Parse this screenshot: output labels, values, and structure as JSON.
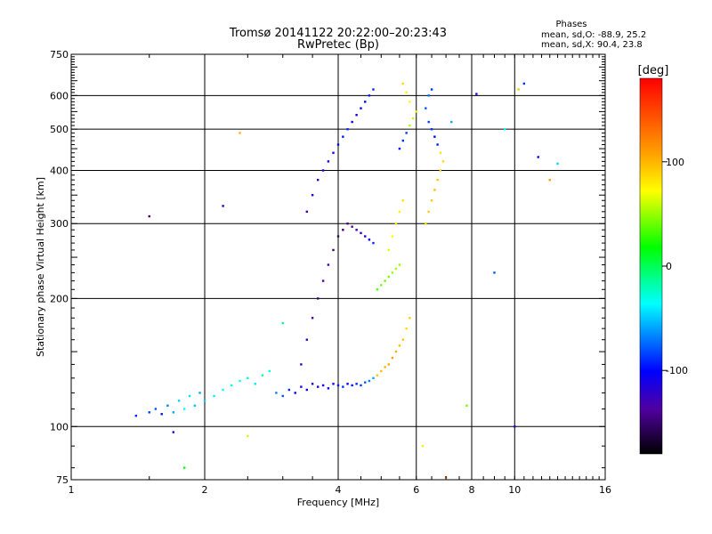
{
  "chart_data": {
    "type": "scatter",
    "title": "Tromsø 20141122 20:22:00–20:23:43",
    "subtitle": "RwPretec (Bp)",
    "xlabel": "Frequency [MHz]",
    "ylabel": "Stationary phase Virtual Height [km]",
    "x_scale": "log",
    "y_scale": "log",
    "xlim": [
      1,
      16
    ],
    "ylim": [
      75,
      750
    ],
    "x_ticks": [
      1,
      2,
      4,
      6,
      8,
      10,
      16
    ],
    "x_tick_labels": [
      "1",
      "2",
      "4",
      "6",
      "8",
      "10",
      "16"
    ],
    "x_gridlines": [
      2,
      4,
      6,
      8,
      10
    ],
    "y_ticks": [
      75,
      100,
      200,
      300,
      400,
      500,
      600,
      750
    ],
    "y_tick_labels": [
      "75",
      "100",
      "200",
      "300",
      "400",
      "500",
      "600",
      "750"
    ],
    "y_gridlines": [
      100,
      200,
      300,
      400,
      500,
      600
    ],
    "grid": true,
    "legend": {
      "title": "Phases",
      "lines": [
        "mean, sd,O:  -88.9, 25.2",
        "mean, sd,X:  90.4, 23.8"
      ],
      "placement": "top-right"
    },
    "colorbar": {
      "label": "[deg]",
      "range": [
        -180,
        180
      ],
      "ticks": [
        100,
        0,
        -100
      ],
      "tick_labels": [
        "100",
        "0",
        "-100"
      ],
      "colormap": "rainbow (black-purple-blue-cyan-green-yellow-red)"
    },
    "series": [
      {
        "points": [
          [
            1.4,
            106,
            -90
          ],
          [
            1.5,
            108,
            -85
          ],
          [
            1.55,
            110,
            -80
          ],
          [
            1.6,
            107,
            -95
          ],
          [
            1.65,
            112,
            -70
          ],
          [
            1.7,
            108,
            -60
          ],
          [
            1.75,
            115,
            -50
          ],
          [
            1.8,
            110,
            -40
          ],
          [
            1.85,
            118,
            -45
          ],
          [
            1.9,
            112,
            -55
          ],
          [
            1.95,
            120,
            -60
          ],
          [
            2.0,
            115,
            -50
          ],
          [
            2.1,
            118,
            -45
          ],
          [
            2.2,
            122,
            -40
          ],
          [
            2.3,
            125,
            -35
          ],
          [
            2.4,
            128,
            -40
          ],
          [
            2.5,
            130,
            -30
          ],
          [
            2.6,
            126,
            -45
          ],
          [
            2.7,
            132,
            -25
          ],
          [
            2.8,
            135,
            -35
          ],
          [
            2.9,
            120,
            -70
          ],
          [
            3.0,
            118,
            -80
          ],
          [
            3.1,
            122,
            -90
          ],
          [
            3.2,
            120,
            -100
          ],
          [
            3.3,
            124,
            -110
          ],
          [
            3.4,
            122,
            -105
          ],
          [
            3.5,
            126,
            -120
          ],
          [
            3.6,
            124,
            -115
          ],
          [
            3.7,
            125,
            -110
          ],
          [
            3.8,
            123,
            -100
          ],
          [
            3.9,
            126,
            -105
          ],
          [
            4.0,
            125,
            -95
          ],
          [
            4.1,
            124,
            -90
          ],
          [
            4.2,
            126,
            -100
          ],
          [
            4.3,
            125,
            -95
          ],
          [
            4.4,
            126,
            -90
          ],
          [
            4.5,
            125,
            -85
          ],
          [
            4.6,
            127,
            -80
          ],
          [
            4.7,
            128,
            -70
          ],
          [
            4.8,
            130,
            -60
          ],
          [
            4.9,
            132,
            120
          ],
          [
            5.0,
            135,
            125
          ],
          [
            5.1,
            138,
            130
          ],
          [
            5.2,
            140,
            135
          ],
          [
            5.3,
            145,
            140
          ],
          [
            5.4,
            150,
            130
          ],
          [
            5.5,
            155,
            125
          ],
          [
            5.6,
            160,
            120
          ],
          [
            5.7,
            170,
            110
          ],
          [
            5.8,
            180,
            115
          ],
          [
            3.3,
            140,
            -120
          ],
          [
            3.4,
            160,
            -130
          ],
          [
            3.5,
            180,
            -140
          ],
          [
            3.6,
            200,
            -150
          ],
          [
            3.7,
            220,
            -140
          ],
          [
            3.8,
            240,
            -130
          ],
          [
            3.9,
            260,
            -150
          ],
          [
            4.0,
            280,
            -155
          ],
          [
            4.1,
            290,
            -150
          ],
          [
            4.2,
            300,
            -145
          ],
          [
            4.3,
            295,
            -140
          ],
          [
            4.4,
            290,
            -130
          ],
          [
            4.5,
            285,
            -120
          ],
          [
            4.6,
            280,
            -110
          ],
          [
            4.7,
            275,
            -100
          ],
          [
            4.8,
            270,
            -90
          ],
          [
            3.4,
            320,
            -130
          ],
          [
            3.5,
            350,
            -120
          ],
          [
            3.6,
            380,
            -125
          ],
          [
            3.7,
            400,
            -115
          ],
          [
            3.8,
            420,
            -110
          ],
          [
            3.9,
            440,
            -105
          ],
          [
            4.0,
            460,
            -100
          ],
          [
            4.1,
            480,
            -95
          ],
          [
            4.2,
            500,
            -90
          ],
          [
            4.3,
            520,
            -100
          ],
          [
            4.4,
            540,
            -110
          ],
          [
            4.5,
            560,
            -105
          ],
          [
            4.6,
            580,
            -100
          ],
          [
            4.7,
            600,
            -95
          ],
          [
            4.8,
            620,
            -90
          ],
          [
            4.9,
            210,
            30
          ],
          [
            5.0,
            215,
            40
          ],
          [
            5.1,
            220,
            35
          ],
          [
            5.2,
            225,
            45
          ],
          [
            5.3,
            230,
            50
          ],
          [
            5.4,
            235,
            60
          ],
          [
            5.5,
            240,
            55
          ],
          [
            5.2,
            260,
            80
          ],
          [
            5.3,
            280,
            90
          ],
          [
            5.4,
            300,
            100
          ],
          [
            5.5,
            320,
            95
          ],
          [
            5.6,
            340,
            105
          ],
          [
            6.3,
            300,
            110
          ],
          [
            6.4,
            320,
            115
          ],
          [
            6.5,
            340,
            120
          ],
          [
            6.6,
            360,
            125
          ],
          [
            6.7,
            380,
            120
          ],
          [
            6.8,
            400,
            115
          ],
          [
            6.9,
            420,
            110
          ],
          [
            6.8,
            440,
            105
          ],
          [
            6.7,
            460,
            -95
          ],
          [
            6.6,
            480,
            -100
          ],
          [
            6.5,
            500,
            -90
          ],
          [
            6.4,
            520,
            -85
          ],
          [
            6.3,
            560,
            -80
          ],
          [
            6.4,
            600,
            -75
          ],
          [
            6.5,
            620,
            -90
          ],
          [
            5.5,
            450,
            -100
          ],
          [
            5.6,
            470,
            -90
          ],
          [
            5.7,
            490,
            -85
          ],
          [
            5.8,
            510,
            60
          ],
          [
            5.9,
            530,
            70
          ],
          [
            6.0,
            550,
            80
          ],
          [
            5.8,
            580,
            90
          ],
          [
            5.7,
            610,
            100
          ],
          [
            5.6,
            640,
            110
          ],
          [
            1.5,
            312,
            -150
          ],
          [
            1.7,
            97,
            -120
          ],
          [
            1.8,
            80,
            0
          ],
          [
            2.2,
            330,
            -120
          ],
          [
            2.4,
            490,
            130
          ],
          [
            2.5,
            95,
            70
          ],
          [
            3.0,
            175,
            -20
          ],
          [
            7.2,
            520,
            -60
          ],
          [
            8.2,
            605,
            -110
          ],
          [
            9.5,
            500,
            -40
          ],
          [
            10.2,
            620,
            120
          ],
          [
            10.5,
            640,
            -90
          ],
          [
            11.3,
            430,
            -100
          ],
          [
            12.0,
            380,
            140
          ],
          [
            12.5,
            415,
            -50
          ],
          [
            10.0,
            100,
            -120
          ],
          [
            7.0,
            76,
            150
          ],
          [
            7.8,
            112,
            40
          ],
          [
            9.0,
            230,
            -80
          ],
          [
            6.2,
            90,
            100
          ]
        ]
      }
    ]
  }
}
